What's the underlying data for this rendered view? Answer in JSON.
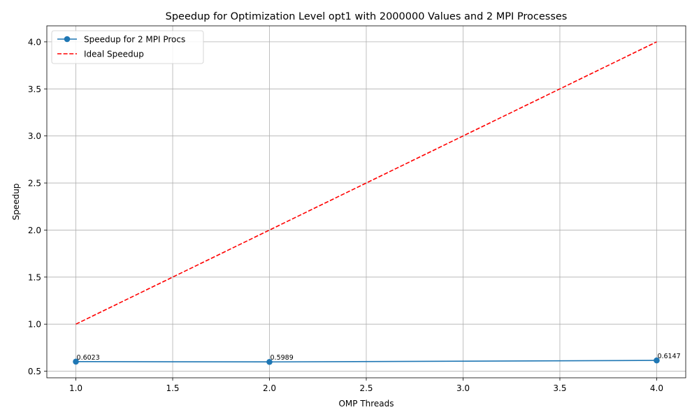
{
  "chart_data": {
    "type": "line",
    "title": "Speedup for Optimization Level opt1 with 2000000 Values and 2 MPI Processes",
    "xlabel": "OMP Threads",
    "ylabel": "Speedup",
    "xlim": [
      0.85,
      4.15
    ],
    "ylim": [
      0.43,
      4.17
    ],
    "xticks": [
      1.0,
      1.5,
      2.0,
      2.5,
      3.0,
      3.5,
      4.0
    ],
    "xtick_labels": [
      "1.0",
      "1.5",
      "2.0",
      "2.5",
      "3.0",
      "3.5",
      "4.0"
    ],
    "yticks": [
      0.5,
      1.0,
      1.5,
      2.0,
      2.5,
      3.0,
      3.5,
      4.0
    ],
    "ytick_labels": [
      "0.5",
      "1.0",
      "1.5",
      "2.0",
      "2.5",
      "3.0",
      "3.5",
      "4.0"
    ],
    "grid": true,
    "legend_position": "top-left",
    "series": [
      {
        "name": "Speedup for 2 MPI Procs",
        "x": [
          1,
          2,
          4
        ],
        "y": [
          0.6023,
          0.5989,
          0.6147
        ],
        "labels": [
          "0.6023",
          "0.5989",
          "0.6147"
        ],
        "color": "#1f77b4",
        "style": "solid",
        "marker": "circle"
      },
      {
        "name": "Ideal Speedup",
        "x": [
          1,
          2,
          4
        ],
        "y": [
          1,
          2,
          4
        ],
        "color": "#ff0000",
        "style": "dashed",
        "marker": "none"
      }
    ]
  }
}
